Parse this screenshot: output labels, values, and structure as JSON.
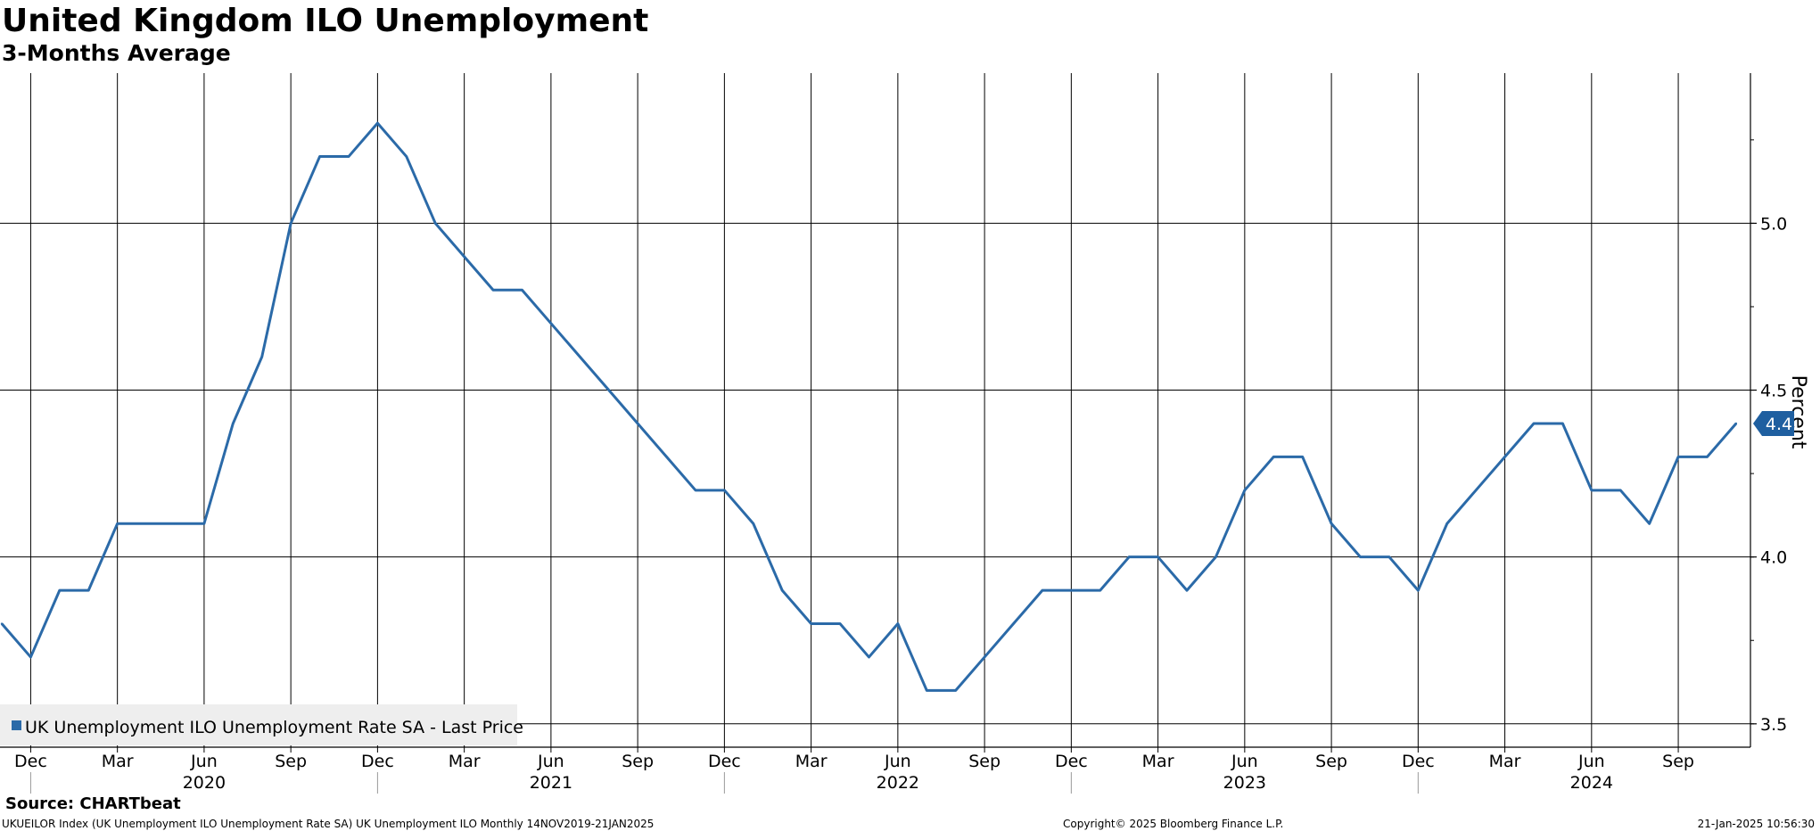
{
  "title": "United Kingdom ILO Unemployment",
  "subtitle": "3-Months Average",
  "source": "Source: CHARTbeat",
  "footer": {
    "left": "UKUEILOR Index (UK Unemployment ILO Unemployment Rate SA) UK Unemployment ILO  Monthly 14NOV2019-21JAN2025",
    "center": "Copyright© 2025 Bloomberg Finance L.P.",
    "right": "21-Jan-2025 10:56:30"
  },
  "colors": {
    "series": "#2b6aa8",
    "grid": "#000000",
    "legend_bg": "#eeeeee",
    "last_value_tag": "#1f5fa0"
  },
  "chart_data": {
    "type": "line",
    "title": "United Kingdom ILO Unemployment",
    "subtitle": "3-Months Average",
    "xlabel": "",
    "ylabel": "Percent",
    "ylim": [
      3.43,
      5.45
    ],
    "y_ticks": [
      3.5,
      4.0,
      4.5,
      5.0
    ],
    "y_tick_labels": [
      "3.5",
      "4.0",
      "4.5",
      "5.0"
    ],
    "x_start": "2019-11",
    "x_end": "2025-01",
    "x_tick_labels": [
      {
        "label": "Dec",
        "month": "2019-12"
      },
      {
        "label": "Mar",
        "month": "2020-03"
      },
      {
        "label": "Jun",
        "month": "2020-06"
      },
      {
        "label": "Sep",
        "month": "2020-09"
      },
      {
        "label": "Dec",
        "month": "2020-12"
      },
      {
        "label": "Mar",
        "month": "2021-03"
      },
      {
        "label": "Jun",
        "month": "2021-06"
      },
      {
        "label": "Sep",
        "month": "2021-09"
      },
      {
        "label": "Dec",
        "month": "2021-12"
      },
      {
        "label": "Mar",
        "month": "2022-03"
      },
      {
        "label": "Jun",
        "month": "2022-06"
      },
      {
        "label": "Sep",
        "month": "2022-09"
      },
      {
        "label": "Dec",
        "month": "2022-12"
      },
      {
        "label": "Mar",
        "month": "2023-03"
      },
      {
        "label": "Jun",
        "month": "2023-06"
      },
      {
        "label": "Sep",
        "month": "2023-09"
      },
      {
        "label": "Dec",
        "month": "2023-12"
      },
      {
        "label": "Mar",
        "month": "2024-03"
      },
      {
        "label": "Jun",
        "month": "2024-06"
      },
      {
        "label": "Sep",
        "month": "2024-09"
      }
    ],
    "year_labels": [
      {
        "label": "2020",
        "month": "2020-06"
      },
      {
        "label": "2021",
        "month": "2021-06"
      },
      {
        "label": "2022",
        "month": "2022-06"
      },
      {
        "label": "2023",
        "month": "2023-06"
      },
      {
        "label": "2024",
        "month": "2024-06"
      }
    ],
    "year_separators": [
      "2019-12",
      "2020-12",
      "2021-12",
      "2022-12",
      "2023-12"
    ],
    "grid": true,
    "legend_position": "bottom-left",
    "last_value_label": "4.4",
    "series": [
      {
        "name": "UK Unemployment ILO Unemployment Rate SA - Last Price",
        "x": [
          "2019-11",
          "2019-12",
          "2020-01",
          "2020-02",
          "2020-03",
          "2020-04",
          "2020-05",
          "2020-06",
          "2020-07",
          "2020-08",
          "2020-09",
          "2020-10",
          "2020-11",
          "2020-12",
          "2021-01",
          "2021-02",
          "2021-03",
          "2021-04",
          "2021-05",
          "2021-06",
          "2021-07",
          "2021-08",
          "2021-09",
          "2021-10",
          "2021-11",
          "2021-12",
          "2022-01",
          "2022-02",
          "2022-03",
          "2022-04",
          "2022-05",
          "2022-06",
          "2022-07",
          "2022-08",
          "2022-09",
          "2022-10",
          "2022-11",
          "2022-12",
          "2023-01",
          "2023-02",
          "2023-03",
          "2023-04",
          "2023-05",
          "2023-06",
          "2023-07",
          "2023-08",
          "2023-09",
          "2023-10",
          "2023-11",
          "2023-12",
          "2024-01",
          "2024-02",
          "2024-03",
          "2024-04",
          "2024-05",
          "2024-06",
          "2024-07",
          "2024-08",
          "2024-09",
          "2024-10",
          "2024-11"
        ],
        "values": [
          3.8,
          3.7,
          3.9,
          3.9,
          4.1,
          4.1,
          4.1,
          4.1,
          4.4,
          4.6,
          5.0,
          5.2,
          5.2,
          5.3,
          5.2,
          5.0,
          4.9,
          4.8,
          4.8,
          4.7,
          4.6,
          4.5,
          4.4,
          4.3,
          4.2,
          4.2,
          4.1,
          3.9,
          3.8,
          3.8,
          3.7,
          3.8,
          3.6,
          3.6,
          3.7,
          3.8,
          3.9,
          3.9,
          3.9,
          4.0,
          4.0,
          3.9,
          4.0,
          4.2,
          4.3,
          4.3,
          4.1,
          4.0,
          4.0,
          3.9,
          4.1,
          4.2,
          4.3,
          4.4,
          4.4,
          4.2,
          4.2,
          4.1,
          4.3,
          4.3,
          4.4
        ]
      }
    ]
  }
}
